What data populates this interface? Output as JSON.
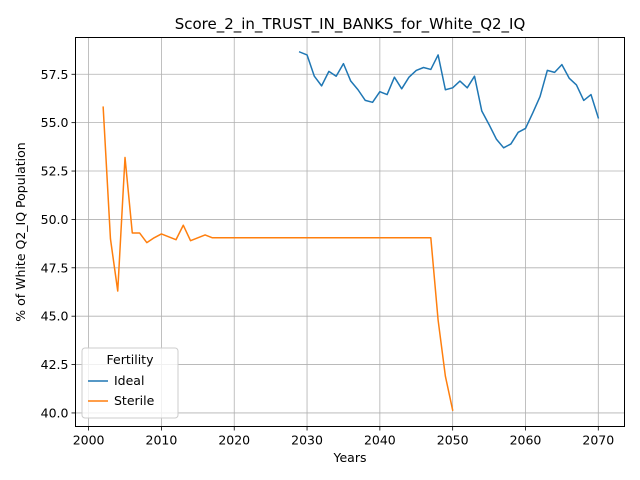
{
  "chart_data": {
    "type": "line",
    "title": "Score_2_in_TRUST_IN_BANKS_for_White_Q2_IQ",
    "xlabel": "Years",
    "ylabel": "% of White Q2_IQ Population",
    "xlim": [
      1998.2,
      2073.6
    ],
    "ylim": [
      39.3,
      59.4
    ],
    "xticks": [
      2000,
      2010,
      2020,
      2030,
      2040,
      2050,
      2060,
      2070
    ],
    "yticks": [
      40.0,
      42.5,
      45.0,
      47.5,
      50.0,
      52.5,
      55.0,
      57.5
    ],
    "ytick_labels": [
      "40.0",
      "42.5",
      "45.0",
      "47.5",
      "50.0",
      "52.5",
      "55.0",
      "57.5"
    ],
    "grid": true,
    "legend": {
      "title": "Fertility",
      "placement": "lower-left"
    },
    "series": [
      {
        "name": "Ideal",
        "color": "#1f77b4",
        "x": [
          2029,
          2030,
          2031,
          2032,
          2033,
          2034,
          2035,
          2036,
          2037,
          2038,
          2039,
          2040,
          2041,
          2042,
          2043,
          2044,
          2045,
          2046,
          2047,
          2048,
          2049,
          2050,
          2051,
          2052,
          2053,
          2054,
          2055,
          2056,
          2057,
          2058,
          2059,
          2060,
          2061,
          2062,
          2063,
          2064,
          2065,
          2066,
          2067,
          2068,
          2069,
          2070
        ],
        "y": [
          58.65,
          58.5,
          57.4,
          56.9,
          57.65,
          57.4,
          58.05,
          57.15,
          56.7,
          56.15,
          56.05,
          56.6,
          56.45,
          57.35,
          56.75,
          57.35,
          57.7,
          57.85,
          57.75,
          58.5,
          56.7,
          56.8,
          57.15,
          56.8,
          57.4,
          55.6,
          54.9,
          54.15,
          53.7,
          53.9,
          54.5,
          54.7,
          55.5,
          56.35,
          57.7,
          57.6,
          58.0,
          57.3,
          56.95,
          56.15,
          56.45,
          55.25
        ]
      },
      {
        "name": "Sterile",
        "color": "#ff7f0e",
        "x": [
          2002,
          2003,
          2004,
          2005,
          2006,
          2007,
          2008,
          2009,
          2010,
          2011,
          2012,
          2013,
          2014,
          2015,
          2016,
          2017,
          2018,
          2019,
          2020,
          2021,
          2022,
          2023,
          2024,
          2025,
          2026,
          2027,
          2028,
          2029,
          2030,
          2031,
          2032,
          2033,
          2034,
          2035,
          2036,
          2037,
          2038,
          2039,
          2040,
          2041,
          2042,
          2043,
          2044,
          2045,
          2046,
          2047,
          2048,
          2049,
          2050
        ],
        "y": [
          55.8,
          49.0,
          46.3,
          53.2,
          49.3,
          49.3,
          48.8,
          49.05,
          49.25,
          49.1,
          48.95,
          49.7,
          48.9,
          49.05,
          49.2,
          49.05,
          49.05,
          49.05,
          49.05,
          49.05,
          49.05,
          49.05,
          49.05,
          49.05,
          49.05,
          49.05,
          49.05,
          49.05,
          49.05,
          49.05,
          49.05,
          49.05,
          49.05,
          49.05,
          49.05,
          49.05,
          49.05,
          49.05,
          49.05,
          49.05,
          49.05,
          49.05,
          49.05,
          49.05,
          49.05,
          49.05,
          44.8,
          41.9,
          40.15
        ]
      }
    ]
  }
}
